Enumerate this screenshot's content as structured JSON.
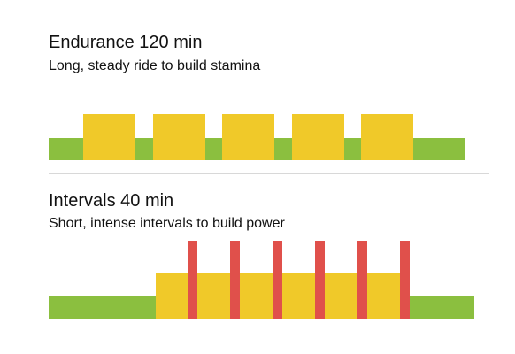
{
  "colors": {
    "zone_easy": "#8bbf3f",
    "zone_tempo": "#f0c929",
    "zone_hard": "#e0504b",
    "divider": "#d8d8d8"
  },
  "workouts": [
    {
      "title": "Endurance 120 min",
      "subtitle": "Long, steady ride to build stamina",
      "intensity_levels": [
        "easy",
        "easy",
        "tempo",
        "tempo",
        "tempo",
        "tempo",
        "tempo"
      ]
    },
    {
      "title": "Intervals 40 min",
      "subtitle": "Short, intense intervals to build power",
      "intensity_levels": [
        "easy",
        "tempo",
        "hard",
        "hard",
        "hard",
        "hard",
        "hard",
        "hard"
      ]
    }
  ]
}
